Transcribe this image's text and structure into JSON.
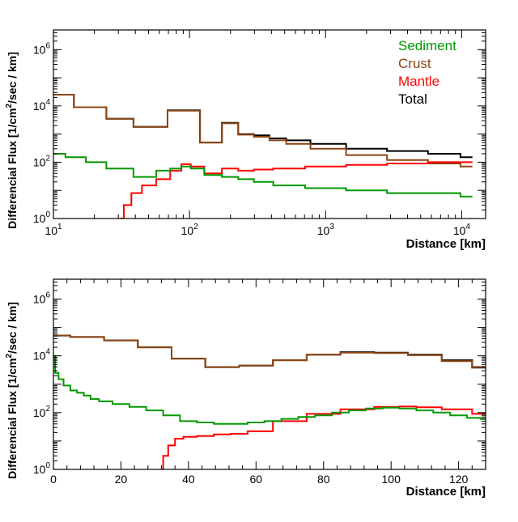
{
  "chart_data": [
    {
      "type": "line",
      "xscale": "log",
      "yscale": "log",
      "xlim": [
        10,
        15000
      ],
      "ylim": [
        1,
        5000000
      ],
      "xticks": [
        {
          "value": 10,
          "base": "10",
          "exp": "1"
        },
        {
          "value": 100,
          "base": "10",
          "exp": "2"
        },
        {
          "value": 1000,
          "base": "10",
          "exp": "3"
        },
        {
          "value": 10000,
          "base": "10",
          "exp": "4"
        }
      ],
      "yticks": [
        {
          "value": 1,
          "base": "10",
          "exp": "0"
        },
        {
          "value": 100,
          "base": "10",
          "exp": "2"
        },
        {
          "value": 10000,
          "base": "10",
          "exp": "4"
        },
        {
          "value": 1000000,
          "base": "10",
          "exp": "6"
        }
      ],
      "xlabel": "Distance [km]",
      "ylabel_parts": [
        "Differencial Flux [1/cm",
        "2",
        "/sec / km]"
      ],
      "legend_position": "top-right",
      "legend": [
        {
          "label": "Sediment",
          "color": "#009900"
        },
        {
          "label": "Crust",
          "color": "#8b4513"
        },
        {
          "label": "Mantle",
          "color": "#ff0000"
        },
        {
          "label": "Total",
          "color": "#000000"
        }
      ],
      "series": [
        {
          "color": "#000000",
          "x": [
            10,
            20,
            30,
            50,
            95,
            150,
            200,
            260,
            340,
            440,
            600,
            1000,
            2000,
            4000,
            8000,
            12000
          ],
          "y": [
            25000,
            9000,
            3500,
            1800,
            7000,
            500,
            2500,
            1000,
            900,
            700,
            600,
            450,
            300,
            250,
            200,
            150
          ]
        },
        {
          "color": "#8b4513",
          "x": [
            10,
            20,
            30,
            50,
            95,
            150,
            200,
            260,
            340,
            440,
            600,
            1000,
            2000,
            4000,
            8000,
            12000
          ],
          "y": [
            25000,
            9000,
            3500,
            1800,
            6800,
            500,
            2400,
            950,
            800,
            600,
            450,
            300,
            180,
            120,
            90,
            70
          ]
        },
        {
          "color": "#ff0000",
          "x": [
            31,
            35,
            40,
            50,
            65,
            80,
            95,
            110,
            150,
            200,
            260,
            340,
            500,
            1000,
            2000,
            4000,
            8000,
            12000
          ],
          "y": [
            1,
            3,
            8,
            15,
            25,
            50,
            85,
            70,
            40,
            60,
            50,
            55,
            60,
            70,
            80,
            90,
            100,
            100
          ]
        },
        {
          "color": "#009900",
          "x": [
            10,
            15,
            20,
            30,
            50,
            65,
            80,
            95,
            110,
            150,
            200,
            260,
            340,
            500,
            1000,
            2000,
            4000,
            8000,
            12000
          ],
          "y": [
            200,
            150,
            100,
            60,
            30,
            50,
            60,
            70,
            60,
            35,
            30,
            25,
            20,
            15,
            12,
            10,
            8,
            8,
            6
          ]
        }
      ]
    },
    {
      "type": "line",
      "xscale": "linear",
      "yscale": "log",
      "xlim": [
        0,
        128
      ],
      "ylim": [
        1,
        5000000
      ],
      "xticks": [
        {
          "value": 0,
          "label": "0"
        },
        {
          "value": 20,
          "label": "20"
        },
        {
          "value": 40,
          "label": "40"
        },
        {
          "value": 60,
          "label": "60"
        },
        {
          "value": 80,
          "label": "80"
        },
        {
          "value": 100,
          "label": "100"
        },
        {
          "value": 120,
          "label": "120"
        }
      ],
      "yticks": [
        {
          "value": 1,
          "base": "10",
          "exp": "0"
        },
        {
          "value": 100,
          "base": "10",
          "exp": "2"
        },
        {
          "value": 10000,
          "base": "10",
          "exp": "4"
        },
        {
          "value": 1000000,
          "base": "10",
          "exp": "6"
        }
      ],
      "xlabel": "Distance [km]",
      "ylabel_parts": [
        "Differencial Flux [1/cm",
        "2",
        "/sec / km]"
      ],
      "series": [
        {
          "color": "#000000",
          "x": [
            0,
            10,
            20,
            30,
            40,
            50,
            60,
            70,
            80,
            90,
            100,
            110,
            120,
            128
          ],
          "y": [
            52000,
            46000,
            35000,
            20000,
            8000,
            4000,
            4500,
            7000,
            11000,
            13500,
            13000,
            11000,
            7000,
            4000
          ]
        },
        {
          "color": "#8b4513",
          "x": [
            0,
            10,
            20,
            30,
            40,
            50,
            60,
            70,
            80,
            90,
            100,
            110,
            120,
            128
          ],
          "y": [
            52000,
            46000,
            35000,
            20000,
            8000,
            4000,
            4500,
            7000,
            11000,
            13000,
            12500,
            10500,
            6500,
            3800
          ]
        },
        {
          "color": "#ff0000",
          "x": [
            32,
            33,
            35,
            37,
            40,
            45,
            50,
            55,
            60,
            70,
            80,
            90,
            100,
            105,
            110,
            120,
            128
          ],
          "y": [
            1,
            3,
            7,
            12,
            14,
            15,
            17,
            18,
            22,
            50,
            90,
            130,
            160,
            165,
            155,
            130,
            90
          ]
        },
        {
          "color": "#009900",
          "x": [
            0,
            1,
            2,
            4,
            6,
            8,
            10,
            12,
            15,
            20,
            25,
            30,
            35,
            40,
            45,
            50,
            55,
            60,
            65,
            70,
            75,
            80,
            85,
            90,
            95,
            100,
            105,
            110,
            115,
            120,
            125,
            128
          ],
          "y": [
            10000,
            2500,
            1500,
            900,
            600,
            500,
            400,
            300,
            250,
            200,
            160,
            120,
            80,
            50,
            45,
            40,
            40,
            45,
            50,
            60,
            70,
            80,
            100,
            120,
            140,
            150,
            140,
            120,
            100,
            80,
            65,
            60
          ]
        }
      ]
    }
  ]
}
